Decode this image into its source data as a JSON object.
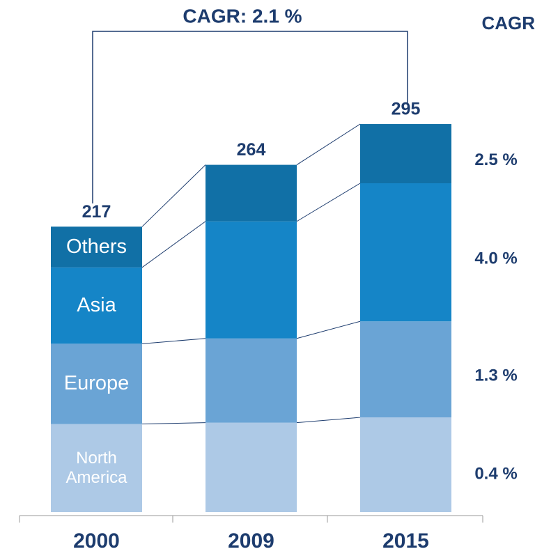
{
  "chart_data": {
    "type": "stacked_bar",
    "title": "CAGR: 2.1 %",
    "cagr_header": "CAGR",
    "categories": [
      "2000",
      "2009",
      "2015"
    ],
    "totals": [
      217,
      264,
      295
    ],
    "series": [
      {
        "name": "North America",
        "color": "#adc9e6",
        "values": [
          67,
          68,
          72
        ],
        "cagr": "0.4 %"
      },
      {
        "name": "Europe",
        "color": "#6aa4d5",
        "values": [
          61,
          64,
          73
        ],
        "cagr": "1.3 %"
      },
      {
        "name": "Asia",
        "color": "#1585c7",
        "values": [
          58,
          89,
          105
        ],
        "cagr": "4.0 %"
      },
      {
        "name": "Others",
        "color": "#1170a6",
        "values": [
          31,
          43,
          45
        ],
        "cagr": "2.5 %"
      }
    ]
  }
}
